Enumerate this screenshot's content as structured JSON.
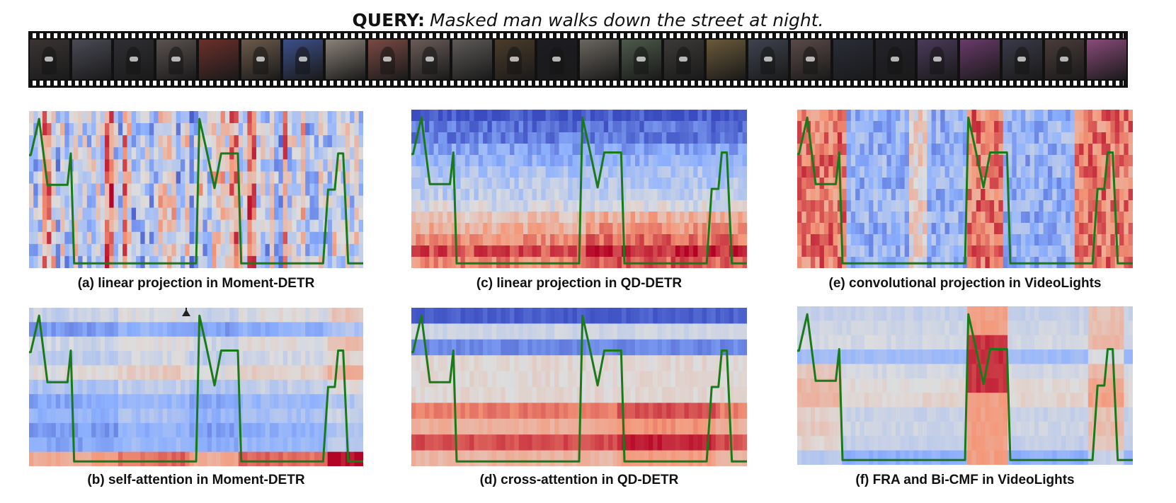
{
  "query": {
    "label": "QUERY:",
    "text": "Masked man walks down the street at night."
  },
  "filmstrip": {
    "frame_count": 26,
    "description": "video frames"
  },
  "colors": {
    "line": "#1a7a1a",
    "cold": "#3b4cc0",
    "neutral": "#dddddd",
    "warm": "#b40426"
  },
  "panels": [
    {
      "id": "a",
      "caption": "(a) linear projection in Moment-DETR"
    },
    {
      "id": "c",
      "caption": "(c) linear projection in QD-DETR"
    },
    {
      "id": "e",
      "caption": "(e) convolutional projection in VideoLights"
    },
    {
      "id": "b",
      "caption": "(b) self-attention in Moment-DETR"
    },
    {
      "id": "d",
      "caption": "(d) cross-attention in QD-DETR"
    },
    {
      "id": "f",
      "caption": "(f) FRA and Bi-CMF in VideoLights"
    }
  ]
}
